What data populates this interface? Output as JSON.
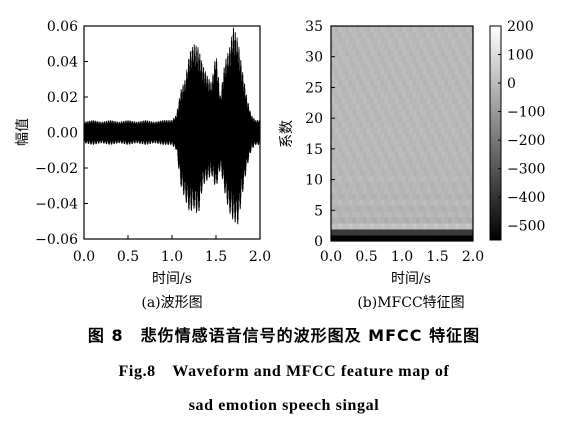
{
  "chart_data": [
    {
      "type": "line",
      "subtitle": "(a)波形图",
      "xlabel": "时间/s",
      "ylabel": "幅值",
      "xlim": [
        0.0,
        2.0
      ],
      "ylim": [
        -0.06,
        0.06
      ],
      "xticks": [
        "0.0",
        "0.5",
        "1.0",
        "1.5",
        "2.0"
      ],
      "yticks": [
        "0.06",
        "0.04",
        "0.02",
        "0.00",
        "−0.02",
        "−0.04",
        "−0.06"
      ],
      "series": [
        {
          "x": [
            0.0,
            0.1,
            0.2,
            0.3,
            0.4,
            0.5,
            0.6,
            0.7,
            0.8,
            0.9,
            1.0,
            1.05,
            1.1,
            1.15,
            1.2,
            1.25,
            1.3,
            1.35,
            1.4,
            1.45,
            1.5,
            1.55,
            1.6,
            1.65,
            1.7,
            1.75,
            1.8,
            1.85,
            1.9,
            1.95,
            2.0
          ],
          "max": [
            0.006,
            0.007,
            0.006,
            0.007,
            0.006,
            0.007,
            0.006,
            0.007,
            0.006,
            0.007,
            0.007,
            0.01,
            0.024,
            0.03,
            0.045,
            0.05,
            0.048,
            0.038,
            0.032,
            0.028,
            0.045,
            0.02,
            0.04,
            0.047,
            0.06,
            0.052,
            0.035,
            0.02,
            0.01,
            0.007,
            0.007
          ],
          "min": [
            -0.006,
            -0.007,
            -0.006,
            -0.007,
            -0.006,
            -0.007,
            -0.006,
            -0.007,
            -0.006,
            -0.007,
            -0.007,
            -0.01,
            -0.03,
            -0.038,
            -0.045,
            -0.043,
            -0.047,
            -0.03,
            -0.027,
            -0.024,
            -0.032,
            -0.02,
            -0.034,
            -0.045,
            -0.05,
            -0.052,
            -0.035,
            -0.02,
            -0.01,
            -0.007,
            -0.007
          ]
        }
      ]
    },
    {
      "type": "heatmap",
      "subtitle": "(b)MFCC特征图",
      "xlabel": "时间/s",
      "ylabel": "系数",
      "xlim": [
        0.0,
        2.0
      ],
      "ylim": [
        0,
        35
      ],
      "xticks": [
        "0.0",
        "0.5",
        "1.0",
        "1.5",
        "2.0"
      ],
      "yticks": [
        "35",
        "30",
        "25",
        "20",
        "15",
        "10",
        "5",
        "0"
      ],
      "colorbar": {
        "range": [
          -550,
          200
        ],
        "ticks": [
          "200",
          "100",
          "0",
          "−100",
          "−200",
          "−300",
          "−400",
          "−500"
        ],
        "colors": [
          "#000000",
          "#ffffff"
        ]
      },
      "row_values": [
        -540,
        -380,
        20,
        -30,
        -10,
        -25,
        -5,
        -20,
        -10,
        -15,
        -5,
        -12,
        -8,
        -10,
        -6,
        -9,
        -7,
        -8,
        -6,
        -8,
        -7,
        -7,
        -6,
        -7,
        -6,
        -7,
        -6,
        -6,
        -6,
        -6,
        -5,
        -6,
        -5,
        -6,
        -5,
        -6
      ]
    }
  ],
  "captions": {
    "cn": "图 8　悲伤情感语音信号的波形图及 MFCC 特征图",
    "en_line1": "Fig.8　Waveform and MFCC feature map of",
    "en_line2": "sad emotion speech singal"
  }
}
